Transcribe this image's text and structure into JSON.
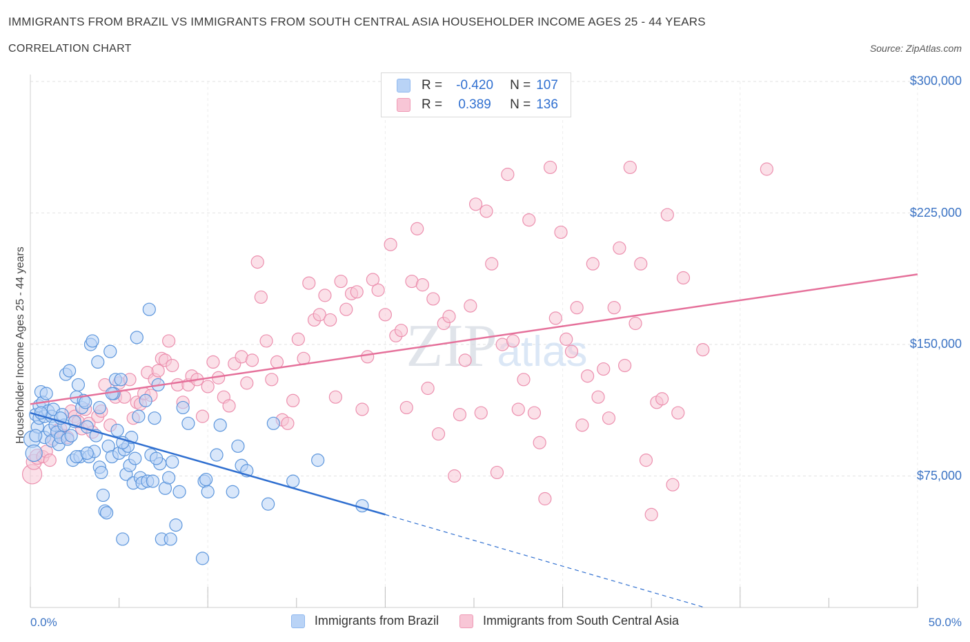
{
  "header": {
    "title": "IMMIGRANTS FROM BRAZIL VS IMMIGRANTS FROM SOUTH CENTRAL ASIA HOUSEHOLDER INCOME AGES 25 - 44 YEARS",
    "subtitle": "CORRELATION CHART",
    "source": "Source: ZipAtlas.com"
  },
  "watermark": "ZIPatlas",
  "legend": {
    "r_label": "R =",
    "n_label": "N =",
    "series": [
      {
        "r": "-0.420",
        "n": "107",
        "color": "#8fb8ef",
        "fill": "#b9d3f6"
      },
      {
        "r": "0.389",
        "n": "136",
        "color": "#ef9ab5",
        "fill": "#f8c6d6"
      }
    ]
  },
  "chart_data": {
    "type": "scatter",
    "title": "IMMIGRANTS FROM BRAZIL VS IMMIGRANTS FROM SOUTH CENTRAL ASIA HOUSEHOLDER INCOME AGES 25 - 44 YEARS",
    "xlabel": "",
    "ylabel": "Householder Income Ages 25 - 44 years",
    "xlim": [
      0,
      50
    ],
    "ylim": [
      0,
      300000
    ],
    "x_tick_labels": [
      "0.0%",
      "50.0%"
    ],
    "y_tick_values": [
      75000,
      150000,
      225000,
      300000
    ],
    "y_tick_labels": [
      "$75,000",
      "$150,000",
      "$225,000",
      "$300,000"
    ],
    "grid": true,
    "legend_position": "top-center",
    "series": [
      {
        "name": "Immigrants from Brazil",
        "color": "#3a78d6",
        "points": [
          [
            0.1,
            96000
          ],
          [
            0.2,
            88000
          ],
          [
            0.3,
            110000
          ],
          [
            0.4,
            103000
          ],
          [
            0.5,
            115000
          ],
          [
            0.5,
            108000
          ],
          [
            0.6,
            123000
          ],
          [
            0.7,
            117000
          ],
          [
            0.8,
            109000
          ],
          [
            0.8,
            97000
          ],
          [
            0.9,
            122000
          ],
          [
            1.0,
            112000
          ],
          [
            1.1,
            101000
          ],
          [
            1.2,
            109000
          ],
          [
            1.2,
            95000
          ],
          [
            1.3,
            113000
          ],
          [
            1.4,
            104000
          ],
          [
            1.5,
            100000
          ],
          [
            1.6,
            93000
          ],
          [
            1.7,
            97000
          ],
          [
            1.8,
            110000
          ],
          [
            1.9,
            104000
          ],
          [
            2.0,
            133000
          ],
          [
            2.1,
            96000
          ],
          [
            2.2,
            135000
          ],
          [
            2.4,
            84000
          ],
          [
            2.5,
            106000
          ],
          [
            2.6,
            120000
          ],
          [
            2.7,
            127000
          ],
          [
            2.8,
            86000
          ],
          [
            2.9,
            114000
          ],
          [
            3.0,
            118000
          ],
          [
            3.1,
            117000
          ],
          [
            3.2,
            103000
          ],
          [
            3.3,
            86000
          ],
          [
            3.4,
            150000
          ],
          [
            3.5,
            152000
          ],
          [
            3.6,
            89000
          ],
          [
            3.7,
            98000
          ],
          [
            3.8,
            140000
          ],
          [
            3.9,
            80000
          ],
          [
            4.0,
            77000
          ],
          [
            4.1,
            64000
          ],
          [
            4.2,
            55000
          ],
          [
            4.3,
            54000
          ],
          [
            4.4,
            92000
          ],
          [
            4.5,
            146000
          ],
          [
            4.6,
            86000
          ],
          [
            4.7,
            122000
          ],
          [
            4.8,
            130000
          ],
          [
            4.9,
            101000
          ],
          [
            5.0,
            88000
          ],
          [
            5.1,
            130000
          ],
          [
            5.2,
            39000
          ],
          [
            5.3,
            90000
          ],
          [
            5.4,
            76000
          ],
          [
            5.5,
            92000
          ],
          [
            5.6,
            81000
          ],
          [
            5.7,
            97000
          ],
          [
            5.8,
            71000
          ],
          [
            5.9,
            85000
          ],
          [
            6.0,
            154000
          ],
          [
            6.1,
            109000
          ],
          [
            6.2,
            74000
          ],
          [
            6.3,
            71000
          ],
          [
            6.5,
            118000
          ],
          [
            6.6,
            72000
          ],
          [
            6.7,
            170000
          ],
          [
            6.8,
            87000
          ],
          [
            7.0,
            108000
          ],
          [
            7.2,
            127000
          ],
          [
            7.3,
            82000
          ],
          [
            7.4,
            39000
          ],
          [
            7.6,
            68000
          ],
          [
            7.8,
            74000
          ],
          [
            7.9,
            39000
          ],
          [
            8.0,
            83000
          ],
          [
            8.2,
            47000
          ],
          [
            8.4,
            66000
          ],
          [
            8.6,
            114000
          ],
          [
            8.9,
            105000
          ],
          [
            9.7,
            28000
          ],
          [
            9.8,
            72000
          ],
          [
            10.0,
            66000
          ],
          [
            10.5,
            87000
          ],
          [
            10.7,
            104000
          ],
          [
            11.4,
            66000
          ],
          [
            11.7,
            92000
          ],
          [
            11.9,
            81000
          ],
          [
            12.2,
            78000
          ],
          [
            13.4,
            59000
          ],
          [
            13.7,
            105000
          ],
          [
            14.8,
            72000
          ],
          [
            16.2,
            84000
          ],
          [
            18.7,
            58000
          ],
          [
            0.3,
            98000
          ],
          [
            0.6,
            111000
          ],
          [
            1.7,
            108000
          ],
          [
            2.3,
            98000
          ],
          [
            2.6,
            86000
          ],
          [
            3.2,
            88000
          ],
          [
            3.9,
            114000
          ],
          [
            4.6,
            122000
          ],
          [
            5.2,
            94000
          ],
          [
            6.9,
            72000
          ],
          [
            7.1,
            85000
          ],
          [
            9.9,
            73000
          ]
        ]
      },
      {
        "name": "Immigrants from South Central Asia",
        "color": "#e57198",
        "points": [
          [
            0.1,
            76000
          ],
          [
            0.2,
            83000
          ],
          [
            0.4,
            86000
          ],
          [
            0.7,
            86000
          ],
          [
            0.9,
            89000
          ],
          [
            1.1,
            84000
          ],
          [
            1.3,
            96000
          ],
          [
            1.5,
            101000
          ],
          [
            1.7,
            102000
          ],
          [
            1.9,
            98000
          ],
          [
            2.1,
            97000
          ],
          [
            2.3,
            112000
          ],
          [
            2.5,
            109000
          ],
          [
            2.7,
            106000
          ],
          [
            2.9,
            102000
          ],
          [
            3.1,
            113000
          ],
          [
            3.3,
            105000
          ],
          [
            3.5,
            100000
          ],
          [
            3.8,
            109000
          ],
          [
            4.0,
            112000
          ],
          [
            4.2,
            127000
          ],
          [
            4.5,
            104000
          ],
          [
            4.8,
            120000
          ],
          [
            5.0,
            128000
          ],
          [
            5.3,
            120000
          ],
          [
            5.6,
            130000
          ],
          [
            5.8,
            108000
          ],
          [
            6.0,
            117000
          ],
          [
            6.2,
            116000
          ],
          [
            6.4,
            122000
          ],
          [
            6.6,
            134000
          ],
          [
            6.8,
            121000
          ],
          [
            7.0,
            130000
          ],
          [
            7.2,
            135000
          ],
          [
            7.4,
            142000
          ],
          [
            7.6,
            141000
          ],
          [
            7.8,
            152000
          ],
          [
            8.0,
            138000
          ],
          [
            8.3,
            127000
          ],
          [
            8.6,
            117000
          ],
          [
            8.9,
            127000
          ],
          [
            9.1,
            132000
          ],
          [
            9.4,
            130000
          ],
          [
            9.7,
            109000
          ],
          [
            10.0,
            126000
          ],
          [
            10.3,
            140000
          ],
          [
            10.6,
            131000
          ],
          [
            10.9,
            120000
          ],
          [
            11.2,
            115000
          ],
          [
            11.5,
            139000
          ],
          [
            11.9,
            143000
          ],
          [
            12.2,
            128000
          ],
          [
            12.5,
            141000
          ],
          [
            12.8,
            197000
          ],
          [
            13.0,
            177000
          ],
          [
            13.3,
            152000
          ],
          [
            13.6,
            130000
          ],
          [
            13.9,
            140000
          ],
          [
            14.2,
            107000
          ],
          [
            14.5,
            105000
          ],
          [
            14.8,
            118000
          ],
          [
            15.1,
            153000
          ],
          [
            15.4,
            142000
          ],
          [
            15.7,
            185000
          ],
          [
            16.0,
            164000
          ],
          [
            16.3,
            167000
          ],
          [
            16.6,
            178000
          ],
          [
            16.9,
            164000
          ],
          [
            17.2,
            120000
          ],
          [
            17.5,
            186000
          ],
          [
            17.8,
            170000
          ],
          [
            18.1,
            179000
          ],
          [
            18.4,
            180000
          ],
          [
            18.7,
            113000
          ],
          [
            19.0,
            143000
          ],
          [
            19.3,
            187000
          ],
          [
            19.6,
            181000
          ],
          [
            20.0,
            167000
          ],
          [
            20.3,
            207000
          ],
          [
            20.6,
            155000
          ],
          [
            20.9,
            158000
          ],
          [
            21.2,
            114000
          ],
          [
            21.5,
            186000
          ],
          [
            21.8,
            216000
          ],
          [
            22.1,
            184000
          ],
          [
            22.4,
            125000
          ],
          [
            22.7,
            176000
          ],
          [
            23.0,
            99000
          ],
          [
            23.3,
            162000
          ],
          [
            23.6,
            166000
          ],
          [
            23.9,
            75000
          ],
          [
            24.2,
            110000
          ],
          [
            24.5,
            141000
          ],
          [
            24.8,
            172000
          ],
          [
            25.1,
            230000
          ],
          [
            25.4,
            111000
          ],
          [
            25.7,
            226000
          ],
          [
            26.0,
            196000
          ],
          [
            26.3,
            77000
          ],
          [
            26.6,
            150000
          ],
          [
            26.9,
            247000
          ],
          [
            27.2,
            152000
          ],
          [
            27.5,
            113000
          ],
          [
            27.8,
            130000
          ],
          [
            28.1,
            221000
          ],
          [
            28.4,
            111000
          ],
          [
            28.7,
            94000
          ],
          [
            29.0,
            62000
          ],
          [
            29.3,
            251000
          ],
          [
            29.6,
            165000
          ],
          [
            29.9,
            214000
          ],
          [
            30.2,
            153000
          ],
          [
            30.5,
            146000
          ],
          [
            30.8,
            171000
          ],
          [
            31.1,
            104000
          ],
          [
            31.4,
            132000
          ],
          [
            31.7,
            196000
          ],
          [
            32.0,
            120000
          ],
          [
            32.3,
            136000
          ],
          [
            32.6,
            108000
          ],
          [
            32.9,
            171000
          ],
          [
            33.2,
            205000
          ],
          [
            33.5,
            138000
          ],
          [
            33.8,
            251000
          ],
          [
            34.1,
            162000
          ],
          [
            34.4,
            196000
          ],
          [
            34.7,
            84000
          ],
          [
            35.0,
            53000
          ],
          [
            35.3,
            117000
          ],
          [
            35.6,
            119000
          ],
          [
            35.9,
            224000
          ],
          [
            36.2,
            70000
          ],
          [
            36.5,
            111000
          ],
          [
            36.8,
            188000
          ],
          [
            37.9,
            147000
          ],
          [
            41.5,
            250000
          ]
        ]
      }
    ],
    "trend_lines": [
      {
        "series": "Immigrants from Brazil",
        "x": [
          0,
          20
        ],
        "y": [
          111000,
          53000
        ],
        "dashed_extension_to": [
          38,
          0
        ]
      },
      {
        "series": "Immigrants from South Central Asia",
        "x": [
          0,
          50
        ],
        "y": [
          116000,
          190000
        ]
      }
    ]
  }
}
